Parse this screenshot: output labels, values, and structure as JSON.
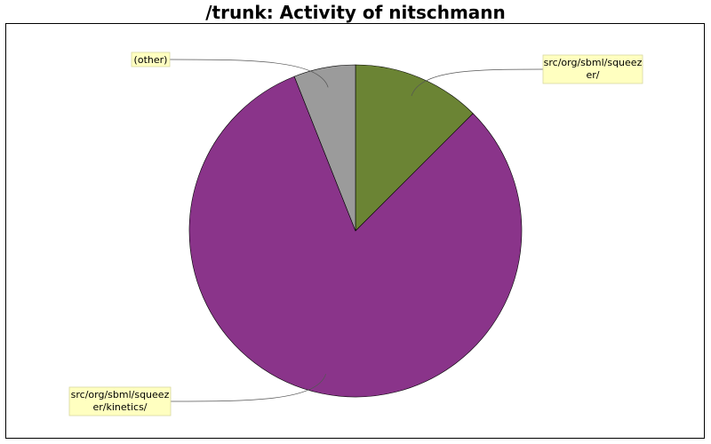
{
  "chart_data": {
    "type": "pie",
    "title": "/trunk: Activity of nitschmann",
    "slices": [
      {
        "label_lines": [
          "src/org/sbml/squeez",
          "er/"
        ],
        "value": 12.5,
        "color": "#6b8434"
      },
      {
        "label_lines": [
          "src/org/sbml/squeez",
          "er/kinetics/"
        ],
        "value": 81.5,
        "color": "#8a348a"
      },
      {
        "label_lines": [
          "(other)"
        ],
        "value": 6.0,
        "color": "#9b9b9b"
      }
    ],
    "label_background": "#ffffc0",
    "start_angle_deg": 0,
    "direction": "clockwise"
  }
}
